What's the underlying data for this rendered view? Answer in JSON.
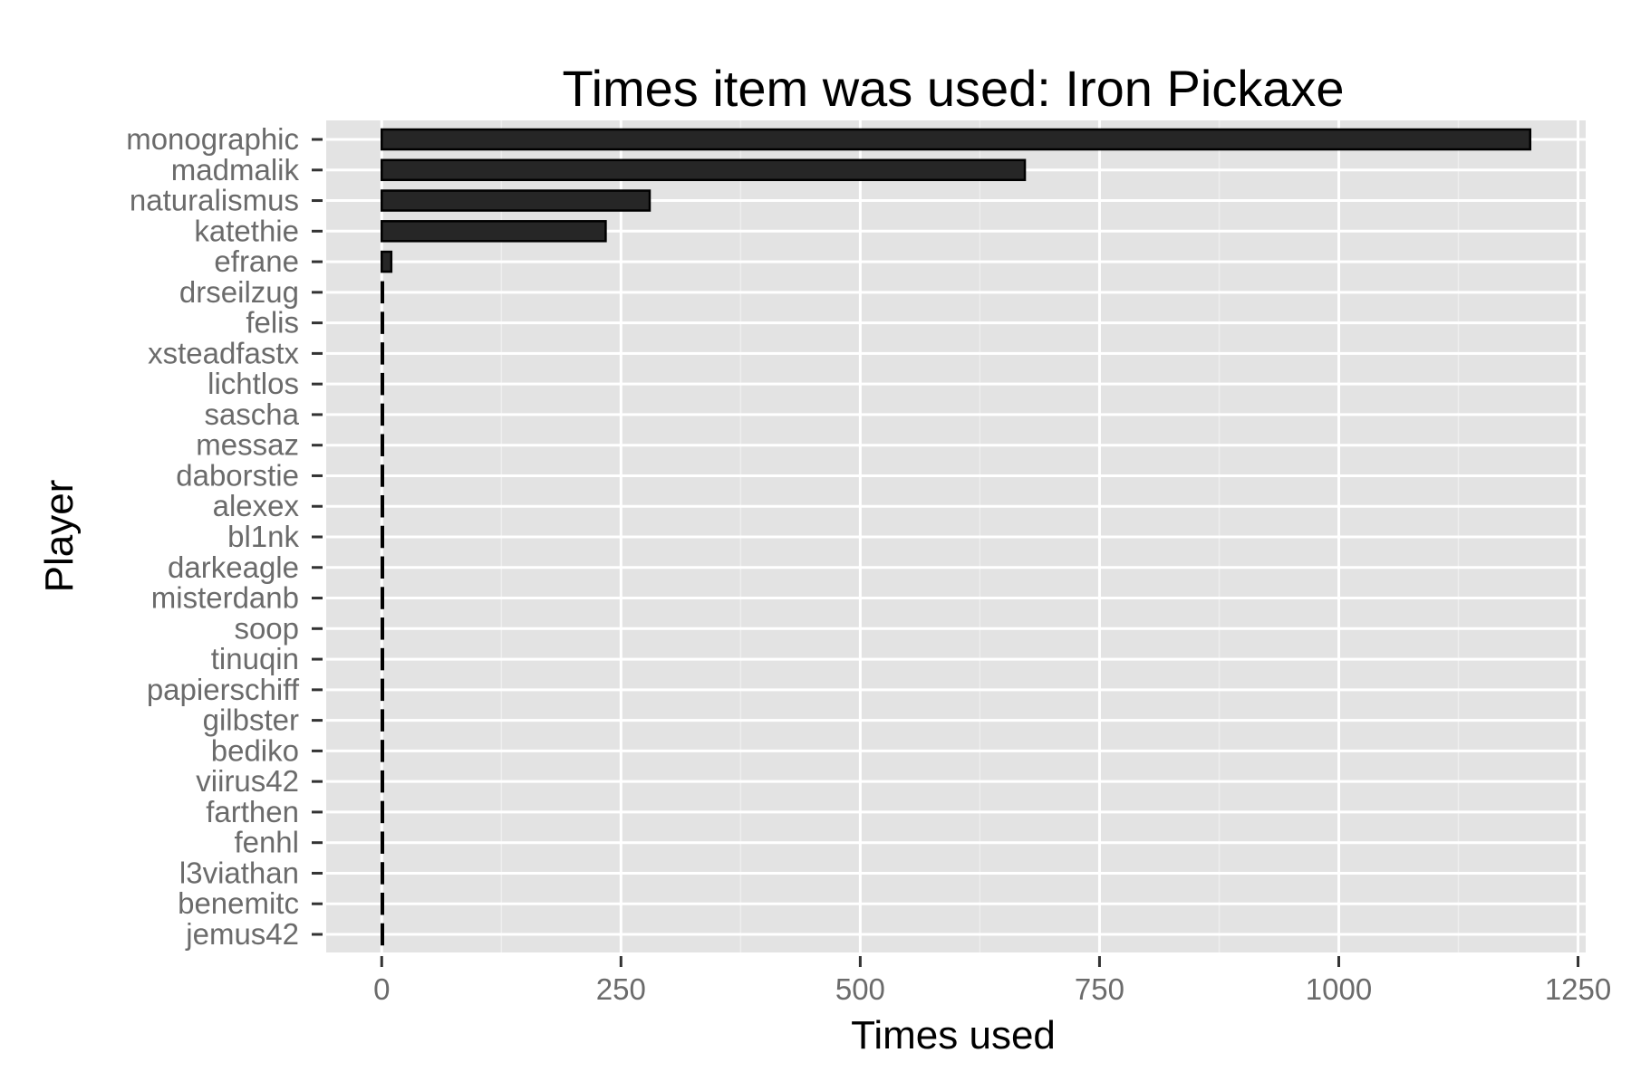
{
  "chart_data": {
    "type": "bar",
    "orientation": "horizontal",
    "title": "Times item was used: Iron Pickaxe",
    "xlabel": "Times used",
    "ylabel": "Player",
    "xlim": [
      -58,
      1258
    ],
    "xticks": [
      0,
      250,
      500,
      750,
      1000,
      1250
    ],
    "xtick_labels": [
      "0",
      "250",
      "500",
      "750",
      "1000",
      "1250"
    ],
    "grid": true,
    "categories": [
      "monographic",
      "madmalik",
      "naturalismus",
      "katethie",
      "efrane",
      "drseilzug",
      "felis",
      "xsteadfastx",
      "lichtlos",
      "sascha",
      "messaz",
      "daborstie",
      "alexex",
      "bl1nk",
      "darkeagle",
      "misterdanb",
      "soop",
      "tinuqin",
      "papierschiff",
      "gilbster",
      "bediko",
      "viirus42",
      "farthen",
      "fenhl",
      "l3viathan",
      "benemitc",
      "jemus42"
    ],
    "values": [
      1200,
      672,
      280,
      234,
      10,
      1,
      1,
      1,
      1,
      1,
      1,
      1,
      1,
      1,
      1,
      1,
      1,
      1,
      1,
      1,
      1,
      1,
      1,
      1,
      1,
      1,
      1
    ],
    "colors": {
      "panel": "#e3e3e3",
      "grid_major": "#ffffff",
      "grid_minor": "#eeeeee",
      "bar_fill": "#262626",
      "bar_stroke": "#000000",
      "tick_text": "#6b6b6b"
    }
  }
}
